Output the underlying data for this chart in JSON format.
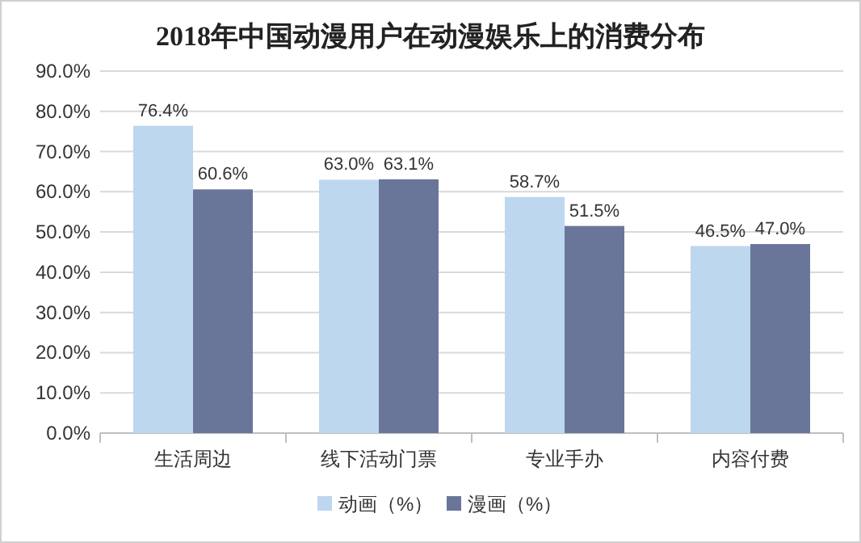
{
  "chart_data": {
    "type": "bar",
    "title": "2018年中国动漫用户在动漫娱乐上的消费分布",
    "categories": [
      "生活周边",
      "线下活动门票",
      "专业手办",
      "内容付费"
    ],
    "series": [
      {
        "name": "动画（%）",
        "color": "#bdd7ee",
        "values": [
          76.4,
          63.0,
          58.7,
          46.5
        ],
        "value_labels": [
          "76.4%",
          "63.0%",
          "58.7%",
          "46.5%"
        ]
      },
      {
        "name": "漫画（%）",
        "color": "#6a7699",
        "values": [
          60.6,
          63.1,
          51.5,
          47.0
        ],
        "value_labels": [
          "60.6%",
          "63.1%",
          "51.5%",
          "47.0%"
        ]
      }
    ],
    "ylim": [
      0,
      90
    ],
    "yticks": [
      {
        "value": 0,
        "label": "0.0%"
      },
      {
        "value": 10,
        "label": "10.0%"
      },
      {
        "value": 20,
        "label": "20.0%"
      },
      {
        "value": 30,
        "label": "30.0%"
      },
      {
        "value": 40,
        "label": "40.0%"
      },
      {
        "value": 50,
        "label": "50.0%"
      },
      {
        "value": 60,
        "label": "60.0%"
      },
      {
        "value": 70,
        "label": "70.0%"
      },
      {
        "value": 80,
        "label": "80.0%"
      },
      {
        "value": 90,
        "label": "90.0%"
      }
    ],
    "grid": "y",
    "legend": "bottom"
  }
}
